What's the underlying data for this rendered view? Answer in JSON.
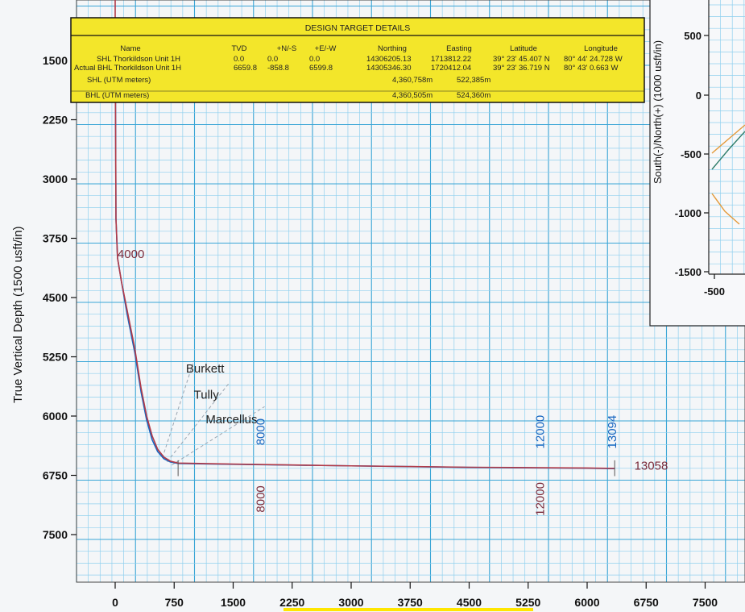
{
  "chart_data": {
    "type": "line",
    "ylabel": "True Vertical Depth (1500 usft/in)",
    "xlabel": "",
    "y_ticks": [
      1500,
      2250,
      3000,
      3750,
      4500,
      5250,
      6000,
      6750,
      7500
    ],
    "x_ticks": [
      0,
      750,
      1500,
      2250,
      3000,
      3750,
      4500,
      5250,
      6000,
      6750,
      7500
    ],
    "y_inverted": true,
    "grid": true,
    "series": [
      {
        "color": "#1565c0",
        "x": [
          0,
          10,
          30,
          80,
          150,
          250,
          330,
          400,
          470,
          540,
          620,
          700,
          800,
          1500,
          3000,
          4500,
          6000,
          6350
        ],
        "y": [
          1000,
          3500,
          4000,
          4300,
          4700,
          5200,
          5700,
          6050,
          6300,
          6450,
          6540,
          6580,
          6600,
          6610,
          6630,
          6650,
          6660,
          6665
        ]
      },
      {
        "color": "#b23a48",
        "x": [
          0,
          10,
          30,
          80,
          150,
          250,
          330,
          400,
          470,
          540,
          620,
          700,
          800,
          1500,
          3000,
          4500,
          6000,
          6350
        ],
        "y": [
          1000,
          3500,
          4000,
          4300,
          4650,
          5150,
          5650,
          6000,
          6250,
          6420,
          6520,
          6570,
          6595,
          6608,
          6630,
          6648,
          6658,
          6662
        ]
      }
    ],
    "formations": [
      {
        "name": "Burkett",
        "label_x": 900,
        "label_y": 5450
      },
      {
        "name": "Tully",
        "label_x": 1000,
        "label_y": 5780
      },
      {
        "name": "Marcellus",
        "label_x": 1150,
        "label_y": 6090
      }
    ],
    "md_labels_blue": [
      {
        "text": "8000",
        "x": 1900,
        "y": 6200
      },
      {
        "text": "12000",
        "x": 5450,
        "y": 6200
      },
      {
        "text": "13094",
        "x": 6370,
        "y": 6200
      }
    ],
    "md_labels_red": [
      {
        "text": "4000",
        "x": 30,
        "y": 4000
      },
      {
        "text": "8000",
        "x": 1900,
        "y": 7050
      },
      {
        "text": "12000",
        "x": 5450,
        "y": 7050
      },
      {
        "text": "13058",
        "x": 6600,
        "y": 6680
      }
    ]
  },
  "table": {
    "title": "DESIGN TARGET DETAILS",
    "headers": [
      "Name",
      "TVD",
      "+N/-S",
      "+E/-W",
      "Northing",
      "Easting",
      "Latitude",
      "Longitude"
    ],
    "rows": [
      [
        "SHL Thorkildson Unit 1H",
        "0.0",
        "0.0",
        "0.0",
        "14306205.13",
        "1713812.22",
        "39° 23' 45.407 N",
        "80° 44' 24.728 W"
      ],
      [
        "Actual BHL Thorkildson Unit 1H",
        "6659.8",
        "-858.8",
        "6599.8",
        "14305346.30",
        "1720412.04",
        "39° 23' 36.719 N",
        "80° 43' 0.663 W"
      ]
    ],
    "utm_rows": [
      {
        "label": "SHL (UTM meters)",
        "northing": "4,360,758m",
        "easting": "522,385m"
      },
      {
        "label": "BHL (UTM meters)",
        "northing": "4,360,505m",
        "easting": "524,360m"
      }
    ]
  },
  "inset": {
    "ylabel": "South(-)/North(+) (1000 usft/in)",
    "y_ticks": [
      "500",
      "0",
      "-500",
      "-1000",
      "-1500"
    ],
    "x_ticks": [
      "-500"
    ],
    "colors": [
      "#e39a3a",
      "#2f7d6a"
    ]
  }
}
